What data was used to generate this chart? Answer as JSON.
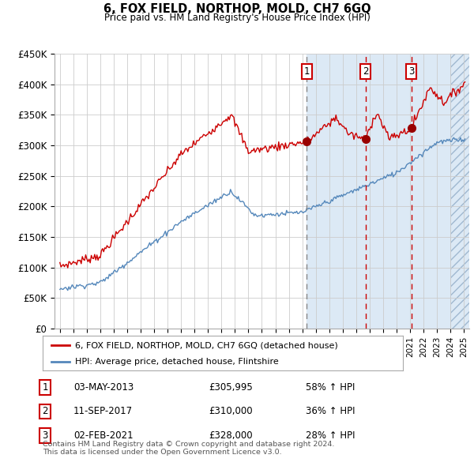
{
  "title": "6, FOX FIELD, NORTHOP, MOLD, CH7 6GQ",
  "subtitle": "Price paid vs. HM Land Registry's House Price Index (HPI)",
  "hpi_label": "HPI: Average price, detached house, Flintshire",
  "property_label": "6, FOX FIELD, NORTHOP, MOLD, CH7 6GQ (detached house)",
  "ylim": [
    0,
    450000
  ],
  "yticks": [
    0,
    50000,
    100000,
    150000,
    200000,
    250000,
    300000,
    350000,
    400000,
    450000
  ],
  "ytick_labels": [
    "£0",
    "£50K",
    "£100K",
    "£150K",
    "£200K",
    "£250K",
    "£300K",
    "£350K",
    "£400K",
    "£450K"
  ],
  "transactions": [
    {
      "num": 1,
      "date": "03-MAY-2013",
      "price": 305995,
      "pct": "58%",
      "dir": "↑",
      "x_year": 2013.34,
      "line_style": "dashed_gray"
    },
    {
      "num": 2,
      "date": "11-SEP-2017",
      "price": 310000,
      "pct": "36%",
      "dir": "↑",
      "x_year": 2017.69,
      "line_style": "dashed_red"
    },
    {
      "num": 3,
      "date": "02-FEB-2021",
      "price": 328000,
      "pct": "28%",
      "dir": "↑",
      "x_year": 2021.09,
      "line_style": "dashed_red"
    }
  ],
  "footer": "Contains HM Land Registry data © Crown copyright and database right 2024.\nThis data is licensed under the Open Government Licence v3.0.",
  "property_color": "#cc0000",
  "hpi_color": "#5588bb",
  "bg_color": "#dce9f5",
  "grid_color": "#cccccc",
  "transaction_box_color": "#cc0000",
  "xlim_start": 1994.6,
  "xlim_end": 2025.4,
  "shade_start": 2013.34,
  "hatch_start": 2024.0
}
